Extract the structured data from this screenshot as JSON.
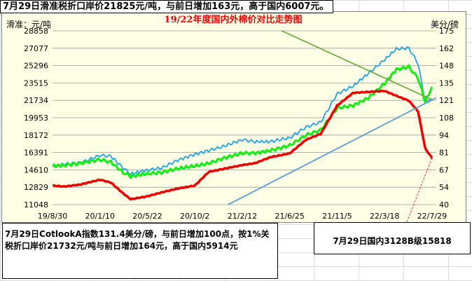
{
  "headline": "7月29日滑准税折口岸价21825元/吨，与前日增加163元，高于国内6007元。",
  "note_left": "7月29日CotlookA指数131.4美分/磅，与前日增加100点，按1%关税折口岸价21732元/吨与前日增加164元，高于国内5914元",
  "note_right": "7月29日国内3128B级15818",
  "colors": {
    "cn_index": "#ee0000",
    "import_sliding": "#21a1e6",
    "cotlook_a": "#11ee11",
    "plot_bg": "#ffffe6",
    "title": "#ee0000",
    "trend_blue": "#5b9bd5",
    "trend_green": "#70ad47"
  },
  "chart_data": {
    "type": "line",
    "title": "19/22年度国内外棉价对比走势图",
    "ylabel": "滑准：元/吨",
    "y2label": "美分/磅",
    "ylim": [
      11048,
      28858
    ],
    "y2lim": [
      40,
      175
    ],
    "yticks": [
      "28858",
      "27077",
      "25296",
      "23515",
      "21734",
      "19953",
      "18172",
      "16391",
      "14610",
      "12829",
      "11048"
    ],
    "y2ticks": [
      "175",
      "162",
      "148",
      "135",
      "121",
      "108",
      "94",
      "81",
      "67",
      "54",
      "40"
    ],
    "xlim": [
      "2019-08-30",
      "2022-08-10"
    ],
    "xticks": [
      "19/8/30",
      "20/1/10",
      "20/5/22",
      "20/10/2",
      "21/2/12",
      "21/6/25",
      "21/11/5",
      "22/3/18",
      "22/7/29"
    ],
    "xtick_dates": [
      "2019-08-30",
      "2020-01-10",
      "2020-05-22",
      "2020-10-02",
      "2021-02-12",
      "2021-06-25",
      "2021-11-05",
      "2022-03-18",
      "2022-07-29"
    ],
    "series": [
      {
        "axis": "left",
        "x": [
          "2019-08-30",
          "2019-10-01",
          "2019-11-15",
          "2020-01-10",
          "2020-02-10",
          "2020-03-15",
          "2020-04-05",
          "2020-05-22",
          "2020-07-01",
          "2020-08-15",
          "2020-10-02",
          "2020-11-10",
          "2020-12-20",
          "2021-02-12",
          "2021-03-20",
          "2021-05-01",
          "2021-06-25",
          "2021-08-10",
          "2021-09-20",
          "2021-11-05",
          "2021-12-20",
          "2022-02-01",
          "2022-03-18",
          "2022-04-20",
          "2022-05-25",
          "2022-06-20",
          "2022-07-10",
          "2022-07-29"
        ],
        "values": [
          13000,
          12900,
          13100,
          13600,
          13300,
          12200,
          11600,
          11900,
          12300,
          12700,
          13000,
          14400,
          14700,
          15100,
          15300,
          15900,
          16300,
          17700,
          18300,
          21200,
          22500,
          22600,
          22700,
          22200,
          21700,
          20600,
          16800,
          15818
        ]
      },
      {
        "axis": "left",
        "x": [
          "2019-08-30",
          "2019-10-01",
          "2019-11-15",
          "2020-01-10",
          "2020-02-10",
          "2020-03-15",
          "2020-04-05",
          "2020-05-22",
          "2020-07-01",
          "2020-08-15",
          "2020-10-02",
          "2020-11-10",
          "2020-12-20",
          "2021-02-12",
          "2021-03-20",
          "2021-05-01",
          "2021-06-25",
          "2021-08-10",
          "2021-09-20",
          "2021-11-05",
          "2021-12-20",
          "2022-02-01",
          "2022-03-18",
          "2022-04-20",
          "2022-05-25",
          "2022-06-20",
          "2022-07-10",
          "2022-07-29"
        ],
        "values": [
          14900,
          15200,
          15300,
          16100,
          16000,
          14800,
          14200,
          14600,
          14800,
          15600,
          16200,
          16600,
          17000,
          17700,
          17500,
          17500,
          17900,
          19000,
          19500,
          22400,
          23200,
          24500,
          25900,
          27000,
          27100,
          25500,
          21600,
          21825
        ]
      },
      {
        "axis": "right",
        "x": [
          "2019-08-30",
          "2019-10-01",
          "2019-11-15",
          "2020-01-10",
          "2020-02-10",
          "2020-03-15",
          "2020-04-05",
          "2020-05-22",
          "2020-07-01",
          "2020-08-15",
          "2020-10-02",
          "2020-11-10",
          "2020-12-20",
          "2021-02-12",
          "2021-03-20",
          "2021-05-01",
          "2021-06-25",
          "2021-08-10",
          "2021-09-20",
          "2021-11-05",
          "2021-12-20",
          "2022-02-01",
          "2022-03-18",
          "2022-04-20",
          "2022-05-25",
          "2022-06-20",
          "2022-07-10",
          "2022-07-29"
        ],
        "values": [
          70,
          70.5,
          72,
          75,
          73,
          65,
          62,
          64,
          65,
          68,
          70,
          72,
          76,
          80,
          80,
          82,
          86,
          94,
          98,
          115,
          117,
          123,
          134,
          145,
          147,
          138,
          120,
          131.4
        ]
      }
    ],
    "annotation_lines": [
      {
        "color": "blue",
        "from": [
          "2020-10-02",
          9300
        ],
        "to": [
          "2022-08-10",
          22000
        ]
      },
      {
        "color": "green",
        "from": [
          "2021-02-25",
          30500
        ],
        "to": [
          "2022-07-29",
          21800
        ]
      }
    ]
  }
}
